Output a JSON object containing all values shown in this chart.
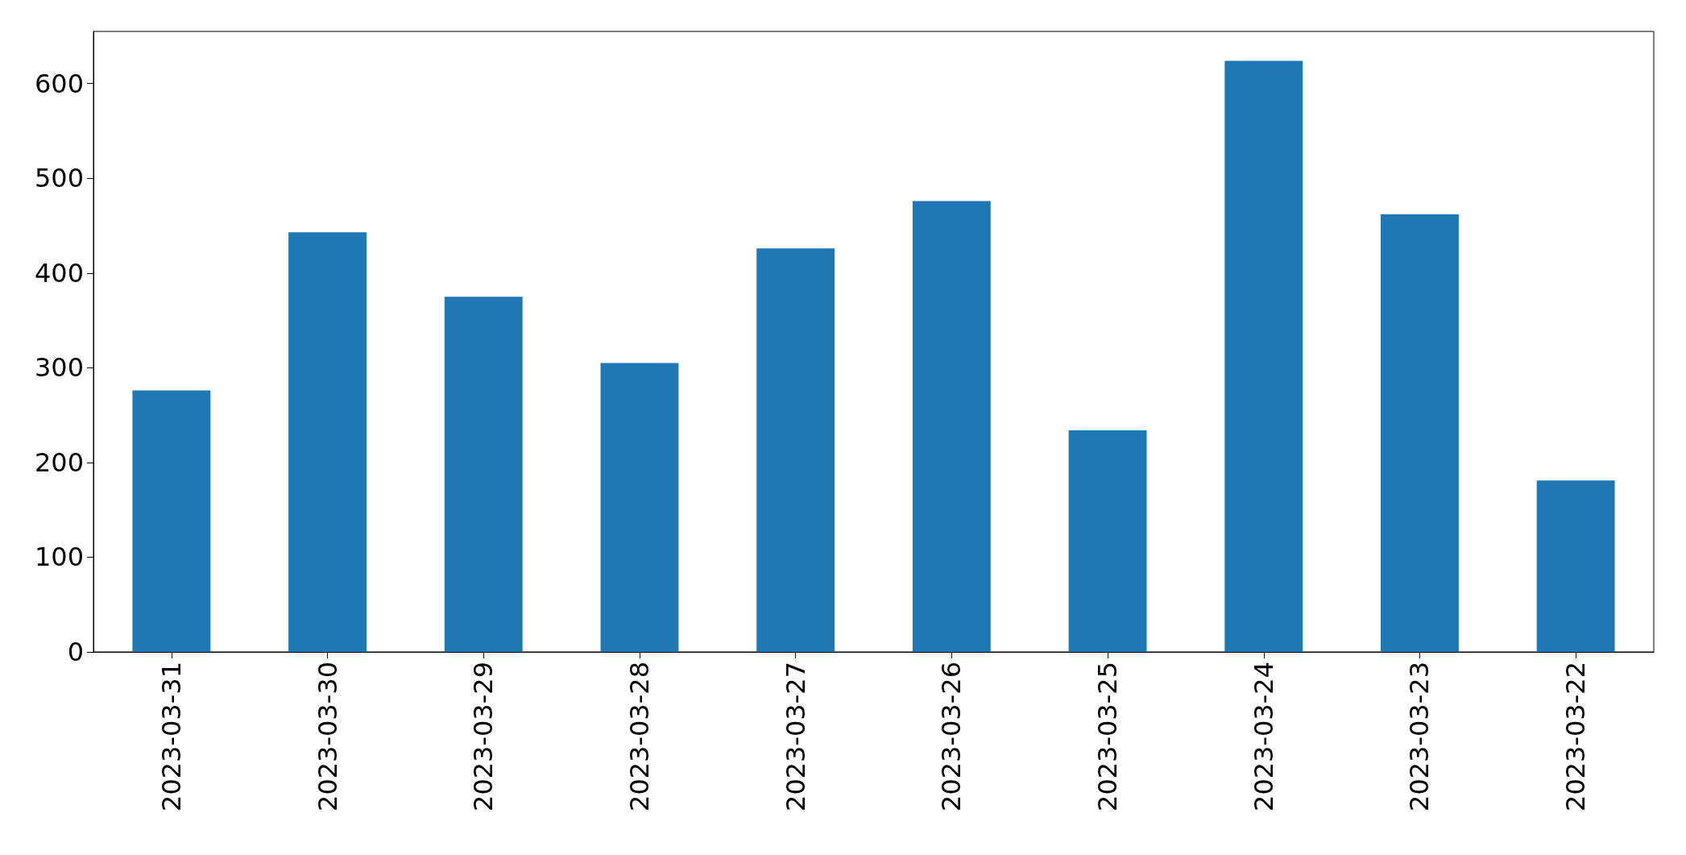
{
  "chart_data": {
    "type": "bar",
    "categories": [
      "2023-03-31",
      "2023-03-30",
      "2023-03-29",
      "2023-03-28",
      "2023-03-27",
      "2023-03-26",
      "2023-03-25",
      "2023-03-24",
      "2023-03-23",
      "2023-03-22"
    ],
    "values": [
      276,
      443,
      375,
      305,
      426,
      476,
      234,
      624,
      462,
      181
    ],
    "color": "#1f77b4",
    "ylim": [
      0,
      655
    ],
    "yticks": [
      0,
      100,
      200,
      300,
      400,
      500,
      600
    ],
    "grid": false
  }
}
